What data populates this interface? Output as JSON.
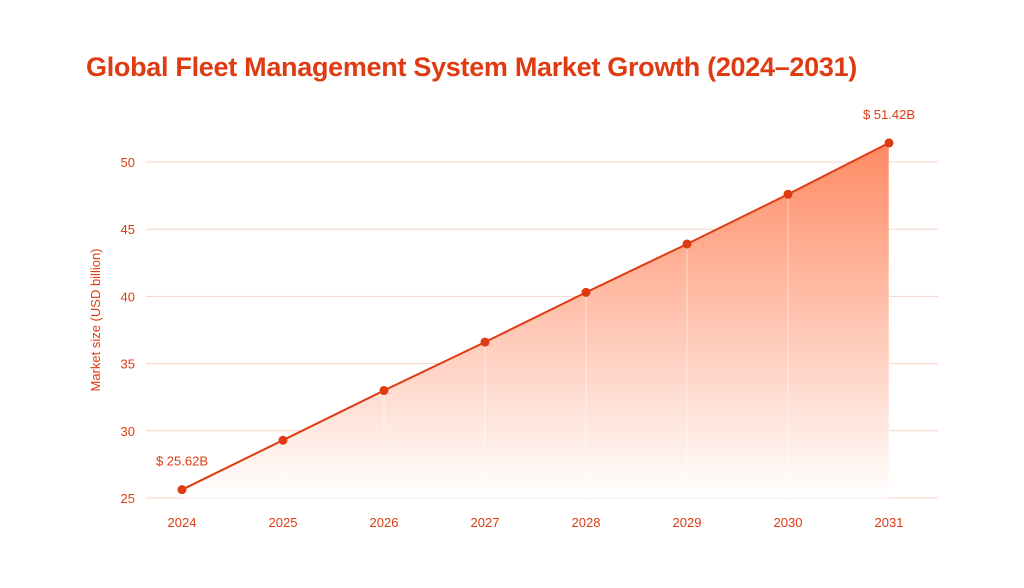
{
  "colors": {
    "accent": "#df3b12",
    "gridline": "#f7d3c7",
    "fill_top": "#ff8a63",
    "fill_bottom": "#ffffff"
  },
  "chart_data": {
    "type": "area",
    "title": "Global Fleet Management System Market Growth (2024–2031)",
    "xlabel": "",
    "ylabel": "Market size (USD billion)",
    "x": [
      "2024",
      "2025",
      "2026",
      "2027",
      "2028",
      "2029",
      "2030",
      "2031"
    ],
    "series": [
      {
        "values": [
          25.62,
          29.3,
          33.0,
          36.6,
          40.3,
          43.9,
          47.6,
          51.42
        ]
      }
    ],
    "ylim": [
      25,
      50
    ],
    "yticks": [
      25,
      30,
      35,
      40,
      45,
      50
    ],
    "annotations": [
      {
        "index": 0,
        "text": "$ 25.62B"
      },
      {
        "index": 7,
        "text": "$ 51.42B"
      }
    ],
    "grid": "horizontal",
    "legend": "none"
  }
}
